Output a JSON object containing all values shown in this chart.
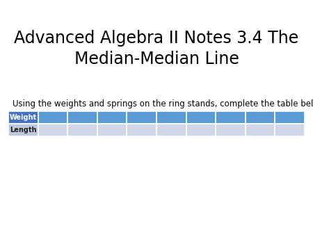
{
  "title_line1": "Advanced Algebra II Notes 3.4 The",
  "title_line2": "Median-Median Line",
  "subtitle": "Using the weights and springs on the ring stands, complete the table below:",
  "row_labels": [
    "Weight",
    "Length"
  ],
  "num_data_cols": 9,
  "weight_header_color": "#4472C4",
  "weight_header_text_color": "#FFFFFF",
  "length_header_color": "#BEC9DC",
  "length_header_text_color": "#1F1F1F",
  "cell_color_weight": "#5B9BD5",
  "cell_color_length": "#D0D8E8",
  "grid_line_color": "#FFFFFF",
  "background_color": "#FFFFFF",
  "title_fontsize": 17,
  "subtitle_fontsize": 8.5,
  "table_label_fontsize": 7
}
